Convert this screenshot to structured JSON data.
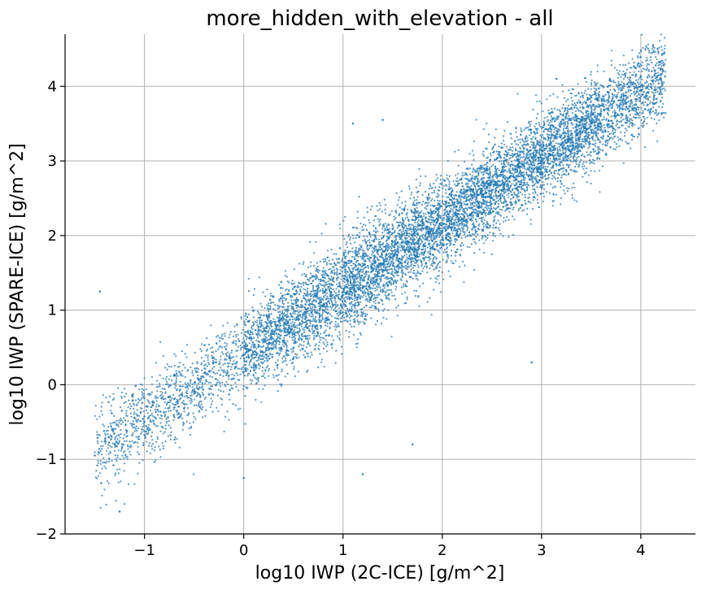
{
  "chart_data": {
    "type": "scatter",
    "title": "more_hidden_with_elevation - all",
    "xlabel": "log10 IWP (2C-ICE) [g/m^2]",
    "ylabel": "log10 IWP (SPARE-ICE) [g/m^2]",
    "xlim": [
      -1.8,
      4.55
    ],
    "ylim": [
      -2.0,
      4.7
    ],
    "xticks": [
      -1,
      0,
      1,
      2,
      3,
      4
    ],
    "yticks": [
      -2,
      -1,
      0,
      1,
      2,
      3,
      4
    ],
    "xtick_labels": [
      "−1",
      "0",
      "1",
      "2",
      "3",
      "4"
    ],
    "ytick_labels": [
      "−2",
      "−1",
      "0",
      "1",
      "2",
      "3",
      "4"
    ],
    "grid": true,
    "color": "#1f77b4",
    "series": [
      {
        "trend": {
          "x_range": [
            -1.5,
            4.25
          ],
          "y_at_x_min": -0.9,
          "y_at_x_max": 4.15
        },
        "sample_points": [
          {
            "x": -1.5,
            "y": -0.95
          },
          {
            "x": -1.3,
            "y": -0.8
          },
          {
            "x": -1.0,
            "y": -0.5
          },
          {
            "x": -0.5,
            "y": -0.1
          },
          {
            "x": 0.0,
            "y": 0.4
          },
          {
            "x": 0.5,
            "y": 0.8
          },
          {
            "x": 1.0,
            "y": 1.2
          },
          {
            "x": 1.5,
            "y": 1.6
          },
          {
            "x": 2.0,
            "y": 2.05
          },
          {
            "x": 2.5,
            "y": 2.5
          },
          {
            "x": 3.0,
            "y": 3.0
          },
          {
            "x": 3.5,
            "y": 3.5
          },
          {
            "x": 4.0,
            "y": 3.95
          },
          {
            "x": 4.2,
            "y": 4.1
          },
          {
            "x": -1.45,
            "y": 1.25
          },
          {
            "x": -1.25,
            "y": -1.7
          },
          {
            "x": 1.1,
            "y": 3.5
          },
          {
            "x": 1.4,
            "y": 3.55
          },
          {
            "x": 2.9,
            "y": 0.3
          },
          {
            "x": 1.2,
            "y": -1.2
          },
          {
            "x": 1.7,
            "y": -0.8
          },
          {
            "x": 0.0,
            "y": -1.25
          },
          {
            "x": 3.15,
            "y": 4.1
          }
        ]
      }
    ]
  }
}
